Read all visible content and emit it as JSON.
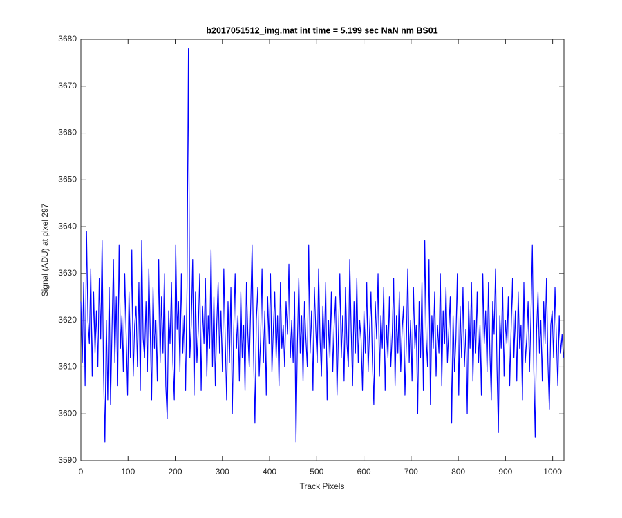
{
  "chart_data": {
    "type": "line",
    "title": "b2017051512_img.mat int time = 5.199 sec  NaN nm BS01",
    "x_label": "Track Pixels",
    "y_label": "Signal (ADU) at pixel 297",
    "color": "#0000ff",
    "xlim": [
      0,
      1024
    ],
    "ylim": [
      3590,
      3680
    ],
    "xticks": [
      0,
      100,
      200,
      300,
      400,
      500,
      600,
      700,
      800,
      900,
      1000
    ],
    "yticks": [
      3590,
      3600,
      3610,
      3620,
      3630,
      3640,
      3650,
      3660,
      3670,
      3680
    ],
    "x": [
      0,
      3,
      6,
      9,
      12,
      15,
      18,
      21,
      24,
      27,
      30,
      33,
      36,
      39,
      42,
      45,
      48,
      51,
      54,
      57,
      60,
      63,
      66,
      69,
      72,
      75,
      78,
      81,
      84,
      87,
      90,
      93,
      96,
      99,
      102,
      105,
      108,
      111,
      114,
      117,
      120,
      123,
      126,
      129,
      132,
      135,
      138,
      141,
      144,
      147,
      150,
      153,
      156,
      159,
      162,
      165,
      168,
      171,
      174,
      177,
      180,
      183,
      186,
      189,
      192,
      195,
      198,
      201,
      204,
      207,
      210,
      213,
      216,
      219,
      222,
      225,
      228,
      231,
      234,
      237,
      240,
      243,
      246,
      249,
      252,
      255,
      258,
      261,
      264,
      267,
      270,
      273,
      276,
      279,
      282,
      285,
      288,
      291,
      294,
      297,
      300,
      303,
      306,
      309,
      312,
      315,
      318,
      321,
      324,
      327,
      330,
      333,
      336,
      339,
      342,
      345,
      348,
      351,
      354,
      357,
      360,
      363,
      366,
      369,
      372,
      375,
      378,
      381,
      384,
      387,
      390,
      393,
      396,
      399,
      402,
      405,
      408,
      411,
      414,
      417,
      420,
      423,
      426,
      429,
      432,
      435,
      438,
      441,
      444,
      447,
      450,
      453,
      456,
      459,
      462,
      465,
      468,
      471,
      474,
      477,
      480,
      483,
      486,
      489,
      492,
      495,
      498,
      501,
      504,
      507,
      510,
      513,
      516,
      519,
      522,
      525,
      528,
      531,
      534,
      537,
      540,
      543,
      546,
      549,
      552,
      555,
      558,
      561,
      564,
      567,
      570,
      573,
      576,
      579,
      582,
      585,
      588,
      591,
      594,
      597,
      600,
      603,
      606,
      609,
      612,
      615,
      618,
      621,
      624,
      627,
      630,
      633,
      636,
      639,
      642,
      645,
      648,
      651,
      654,
      657,
      660,
      663,
      666,
      669,
      672,
      675,
      678,
      681,
      684,
      687,
      690,
      693,
      696,
      699,
      702,
      705,
      708,
      711,
      714,
      717,
      720,
      723,
      726,
      729,
      732,
      735,
      738,
      741,
      744,
      747,
      750,
      753,
      756,
      759,
      762,
      765,
      768,
      771,
      774,
      777,
      780,
      783,
      786,
      789,
      792,
      795,
      798,
      801,
      804,
      807,
      810,
      813,
      816,
      819,
      822,
      825,
      828,
      831,
      834,
      837,
      840,
      843,
      846,
      849,
      852,
      855,
      858,
      861,
      864,
      867,
      870,
      873,
      876,
      879,
      882,
      885,
      888,
      891,
      894,
      897,
      900,
      903,
      906,
      909,
      912,
      915,
      918,
      921,
      924,
      927,
      930,
      933,
      936,
      939,
      942,
      945,
      948,
      951,
      954,
      957,
      960,
      963,
      966,
      969,
      972,
      975,
      978,
      981,
      984,
      987,
      990,
      993,
      996,
      999,
      1002,
      1005,
      1008,
      1011,
      1014,
      1017,
      1020,
      1023
    ],
    "values": [
      3624,
      3611,
      3628,
      3606,
      3639,
      3620,
      3615,
      3631,
      3608,
      3626,
      3613,
      3622,
      3610,
      3629,
      3616,
      3637,
      3609,
      3594,
      3620,
      3603,
      3627,
      3602,
      3618,
      3633,
      3611,
      3625,
      3606,
      3636,
      3614,
      3621,
      3609,
      3630,
      3617,
      3604,
      3626,
      3612,
      3635,
      3608,
      3619,
      3623,
      3610,
      3628,
      3605,
      3637,
      3616,
      3612,
      3624,
      3609,
      3631,
      3618,
      3603,
      3627,
      3614,
      3620,
      3607,
      3633,
      3611,
      3625,
      3613,
      3630,
      3606,
      3599,
      3622,
      3615,
      3628,
      3611,
      3603,
      3636,
      3618,
      3624,
      3609,
      3630,
      3613,
      3621,
      3605,
      3627,
      3678,
      3612,
      3619,
      3633,
      3604,
      3626,
      3611,
      3618,
      3630,
      3605,
      3623,
      3615,
      3629,
      3608,
      3621,
      3614,
      3635,
      3610,
      3625,
      3606,
      3619,
      3628,
      3613,
      3622,
      3609,
      3631,
      3616,
      3603,
      3624,
      3611,
      3627,
      3600,
      3618,
      3630,
      3614,
      3621,
      3607,
      3626,
      3612,
      3619,
      3605,
      3628,
      3617,
      3610,
      3623,
      3636,
      3613,
      3598,
      3620,
      3627,
      3608,
      3616,
      3631,
      3611,
      3622,
      3604,
      3625,
      3615,
      3630,
      3609,
      3618,
      3626,
      3612,
      3621,
      3606,
      3628,
      3614,
      3619,
      3610,
      3624,
      3617,
      3632,
      3612,
      3620,
      3611,
      3626,
      3594,
      3615,
      3629,
      3613,
      3621,
      3607,
      3624,
      3616,
      3610,
      3636,
      3613,
      3622,
      3605,
      3627,
      3618,
      3611,
      3631,
      3616,
      3608,
      3623,
      3614,
      3628,
      3603,
      3620,
      3612,
      3626,
      3609,
      3619,
      3625,
      3604,
      3617,
      3630,
      3612,
      3621,
      3607,
      3627,
      3615,
      3610,
      3633,
      3618,
      3606,
      3624,
      3613,
      3629,
      3611,
      3620,
      3616,
      3605,
      3622,
      3613,
      3628,
      3609,
      3618,
      3626,
      3611,
      3602,
      3624,
      3616,
      3630,
      3608,
      3621,
      3614,
      3627,
      3605,
      3619,
      3612,
      3625,
      3610,
      3617,
      3629,
      3606,
      3621,
      3613,
      3626,
      3609,
      3618,
      3623,
      3604,
      3615,
      3631,
      3611,
      3620,
      3607,
      3627,
      3614,
      3619,
      3600,
      3624,
      3612,
      3628,
      3605,
      3637,
      3616,
      3610,
      3633,
      3602,
      3621,
      3614,
      3626,
      3608,
      3619,
      3613,
      3630,
      3606,
      3622,
      3615,
      3627,
      3611,
      3618,
      3625,
      3598,
      3621,
      3609,
      3616,
      3630,
      3604,
      3623,
      3612,
      3627,
      3610,
      3618,
      3600,
      3624,
      3614,
      3628,
      3607,
      3620,
      3613,
      3626,
      3611,
      3619,
      3604,
      3630,
      3615,
      3622,
      3609,
      3628,
      3613,
      3603,
      3624,
      3617,
      3631,
      3610,
      3596,
      3621,
      3614,
      3627,
      3608,
      3620,
      3615,
      3625,
      3606,
      3618,
      3629,
      3612,
      3622,
      3607,
      3626,
      3614,
      3619,
      3603,
      3628,
      3611,
      3616,
      3624,
      3609,
      3621,
      3636,
      3610,
      3595,
      3618,
      3626,
      3613,
      3620,
      3607,
      3624,
      3615,
      3629,
      3611,
      3601,
      3619,
      3622,
      3612,
      3627,
      3616,
      3606,
      3621,
      3613,
      3617,
      3612
    ]
  }
}
